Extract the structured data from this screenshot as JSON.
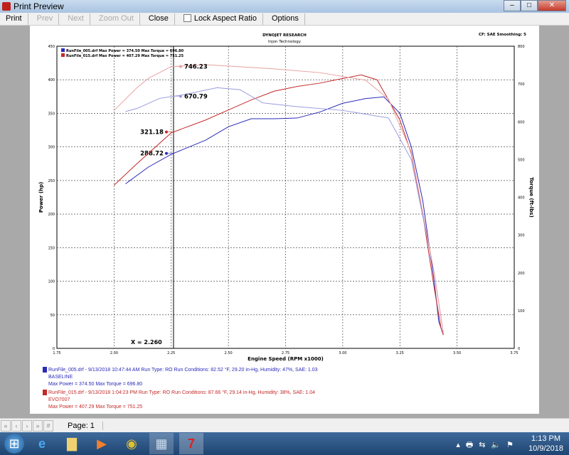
{
  "window": {
    "title": "Print Preview"
  },
  "toolbar": {
    "print": "Print",
    "prev": "Prev",
    "next": "Next",
    "zoom_out": "Zoom Out",
    "close": "Close",
    "lock_aspect": "Lock Aspect Ratio",
    "lock_aspect_checked": false,
    "options": "Options"
  },
  "report": {
    "header1": "DYNOJET RESEARCH",
    "header2": "Injon Technology",
    "cf": "CF: SAE  Smoothing: 5",
    "legend": [
      {
        "text": "RunFile_005.drf Max Power = 374.50   Max Torque = 696.80",
        "color": "#2b2bb8"
      },
      {
        "text": "RunFile_015.drf Max Power = 407.29   Max Torque = 751.25",
        "color": "#c42a2a"
      }
    ],
    "runs": [
      {
        "line1": "RunFile_005.drf - 9/13/2018 10:47:44 AM  Run Type: RO  Run Conditions: 82.52 °F, 29.20 in-Hg,  Humidity:  47%, SAE: 1.03",
        "line2": "BASELINE",
        "line3": "Max Power = 374.50  Max Torque = 696.80",
        "color": "#2b2bb8"
      },
      {
        "line1": "RunFile_015.drf - 9/13/2018 1:04:23 PM  Run Type: RO  Run Conditions: 87.66 °F, 29.14 in-Hg,  Humidity:  38%, SAE: 1.04",
        "line2": "EVO7007",
        "line3": "Max Power = 407.29  Max Torque = 751.25",
        "color": "#c42a2a"
      }
    ]
  },
  "chart_data": {
    "type": "line",
    "xlabel": "Engine Speed (RPM x1000)",
    "ylabel": "Power (hp)",
    "y2label": "Torque (ft-lbs)",
    "xlim": [
      1.75,
      3.75
    ],
    "ylim": [
      0,
      450
    ],
    "y2lim": [
      0,
      800
    ],
    "grid": true,
    "xticks": [
      "1.75",
      "2.00",
      "2.25",
      "2.50",
      "2.75",
      "3.00",
      "3.25",
      "3.50",
      "3.75"
    ],
    "yticks": [
      "0",
      "50",
      "100",
      "150",
      "200",
      "250",
      "300",
      "350",
      "400",
      "450"
    ],
    "y2ticks": [
      "0",
      "100",
      "200",
      "300",
      "400",
      "500",
      "600",
      "700",
      "800"
    ],
    "cursor": {
      "x": 2.26,
      "label": "X = 2.260"
    },
    "series": [
      {
        "name": "RunFile_005.drf Power",
        "axis": "left",
        "color": "#2b2bb8",
        "x": [
          2.05,
          2.15,
          2.25,
          2.4,
          2.5,
          2.6,
          2.7,
          2.8,
          2.9,
          3.0,
          3.1,
          3.18,
          3.25,
          3.3,
          3.35,
          3.4,
          3.42,
          3.44
        ],
        "y": [
          245,
          270,
          289,
          310,
          330,
          342,
          342,
          343,
          352,
          365,
          372,
          374.5,
          350,
          300,
          220,
          100,
          40,
          20
        ],
        "cursor_value": "288.72"
      },
      {
        "name": "RunFile_015.drf Power",
        "axis": "left",
        "color": "#c42a2a",
        "x": [
          2.0,
          2.1,
          2.25,
          2.4,
          2.5,
          2.6,
          2.7,
          2.8,
          2.9,
          3.0,
          3.08,
          3.15,
          3.25,
          3.3,
          3.35,
          3.4,
          3.43,
          3.44
        ],
        "y": [
          243,
          275,
          321,
          340,
          355,
          370,
          383,
          390,
          395,
          402,
          407.3,
          400,
          340,
          290,
          200,
          90,
          30,
          20
        ],
        "cursor_value": "321.18"
      },
      {
        "name": "RunFile_005.drf Torque",
        "axis": "right",
        "color": "#9a9ae0",
        "x": [
          2.05,
          2.1,
          2.2,
          2.3,
          2.45,
          2.55,
          2.65,
          2.8,
          3.0,
          3.2,
          3.3,
          3.4,
          3.44
        ],
        "y": [
          627,
          635,
          662,
          671,
          690,
          685,
          650,
          640,
          630,
          610,
          500,
          200,
          40
        ],
        "cursor_value": "670.79"
      },
      {
        "name": "RunFile_015.drf Torque",
        "axis": "right",
        "color": "#e8a0a0",
        "x": [
          2.0,
          2.1,
          2.15,
          2.25,
          2.4,
          2.7,
          2.9,
          3.1,
          3.2,
          3.3,
          3.4,
          3.44
        ],
        "y": [
          630,
          690,
          715,
          746,
          751,
          740,
          730,
          710,
          660,
          520,
          200,
          40
        ],
        "cursor_value": "746.23"
      }
    ]
  },
  "statusbar": {
    "page": "Page: 1"
  },
  "taskbar": {
    "time": "1:13 PM",
    "date": "10/9/2018"
  }
}
